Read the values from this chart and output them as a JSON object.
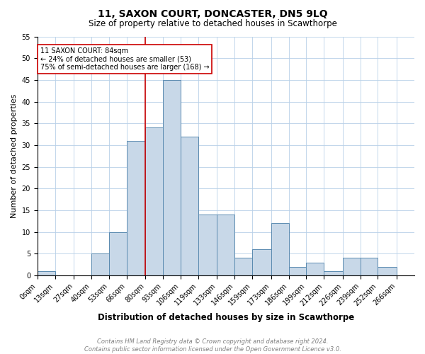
{
  "title": "11, SAXON COURT, DONCASTER, DN5 9LQ",
  "subtitle": "Size of property relative to detached houses in Scawthorpe",
  "xlabel": "Distribution of detached houses by size in Scawthorpe",
  "ylabel": "Number of detached properties",
  "footnote1": "Contains HM Land Registry data © Crown copyright and database right 2024.",
  "footnote2": "Contains public sector information licensed under the Open Government Licence v3.0.",
  "bin_labels": [
    "0sqm",
    "13sqm",
    "27sqm",
    "40sqm",
    "53sqm",
    "66sqm",
    "80sqm",
    "93sqm",
    "106sqm",
    "119sqm",
    "133sqm",
    "146sqm",
    "159sqm",
    "173sqm",
    "186sqm",
    "199sqm",
    "212sqm",
    "226sqm",
    "239sqm",
    "252sqm",
    "266sqm"
  ],
  "bar_heights": [
    1,
    0,
    0,
    5,
    10,
    31,
    34,
    45,
    32,
    14,
    14,
    4,
    6,
    12,
    2,
    3,
    1,
    4,
    4,
    2,
    0
  ],
  "bar_color": "#c8d8e8",
  "bar_edge_color": "#5a8ab0",
  "property_line_x": 80,
  "annotation_title": "11 SAXON COURT: 84sqm",
  "annotation_line2": "← 24% of detached houses are smaller (53)",
  "annotation_line3": "75% of semi-detached houses are larger (168) →",
  "red_line_color": "#cc0000",
  "annotation_box_color": "#ffffff",
  "annotation_box_edge": "#cc0000",
  "ylim": [
    0,
    55
  ],
  "yticks": [
    0,
    5,
    10,
    15,
    20,
    25,
    30,
    35,
    40,
    45,
    50,
    55
  ],
  "bin_edges": [
    0,
    13,
    27,
    40,
    53,
    66,
    80,
    93,
    106,
    119,
    133,
    146,
    159,
    173,
    186,
    199,
    212,
    226,
    239,
    252,
    266,
    279
  ],
  "title_fontsize": 10,
  "subtitle_fontsize": 8.5,
  "xlabel_fontsize": 8.5,
  "ylabel_fontsize": 8,
  "tick_fontsize": 7,
  "annot_fontsize": 7,
  "footnote_fontsize": 6
}
